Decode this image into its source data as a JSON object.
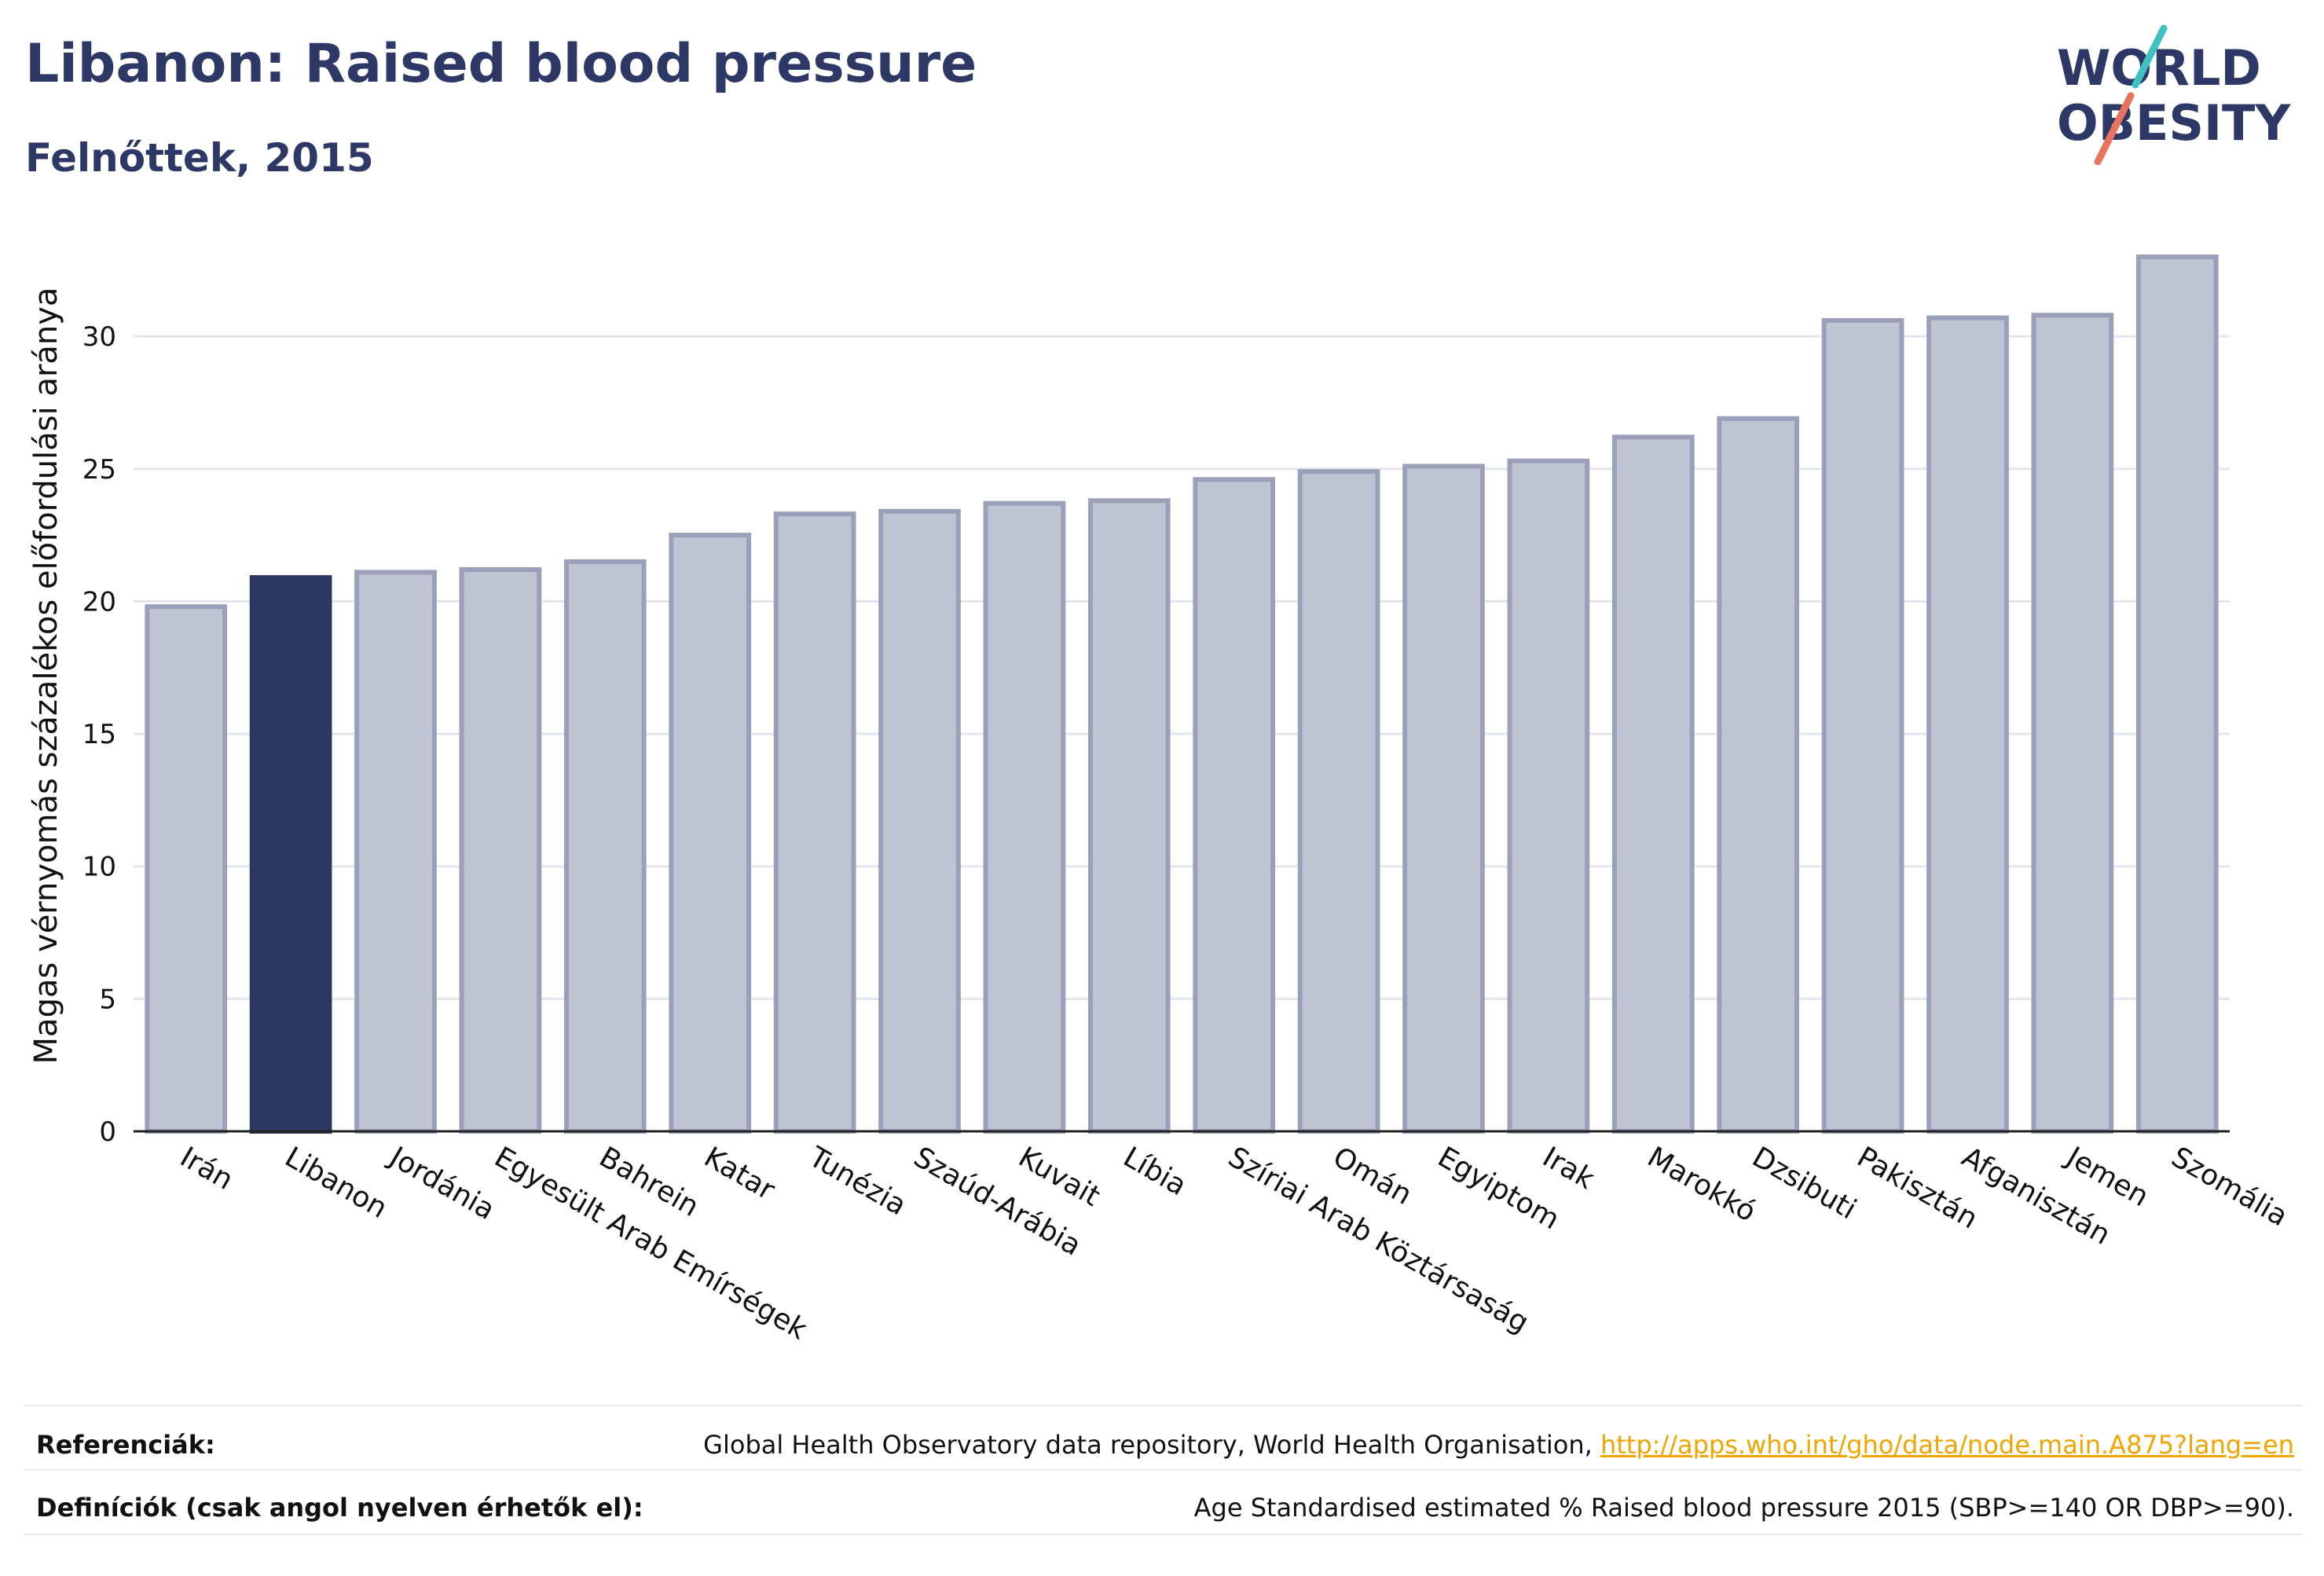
{
  "header": {
    "title": "Libanon: Raised blood pressure",
    "subtitle": "Felnőttek, 2015"
  },
  "logo": {
    "line1": "WORLD",
    "line2": "OBESITY",
    "colors": {
      "text": "#2d3866",
      "slash_teal": "#3ec1c1",
      "slash_coral": "#e8735f"
    }
  },
  "colors": {
    "highlight_bar": "#2d3862",
    "other_bar_fill": "#bfc3d2",
    "other_bar_stroke": "#9aa0ba",
    "grid": "#e4e6ee",
    "axis": "#222222"
  },
  "chart_data": {
    "type": "bar",
    "ylabel": "Magas vérnyomás százalékos előfordulási aránya",
    "xlabel": "",
    "ylim": [
      0,
      33.8
    ],
    "yticks": [
      0,
      5,
      10,
      15,
      20,
      25,
      30
    ],
    "grid": true,
    "highlight": "Libanon",
    "categories": [
      "Irán",
      "Libanon",
      "Jordánia",
      "Egyesült Arab Emírségek",
      "Bahrein",
      "Katar",
      "Tunézia",
      "Szaúd-Arábia",
      "Kuvait",
      "Líbia",
      "Szíriai Arab Köztársaság",
      "Omán",
      "Egyiptom",
      "Irak",
      "Marokkó",
      "Dzsibuti",
      "Pakisztán",
      "Afganisztán",
      "Jemen",
      "Szomália"
    ],
    "values": [
      19.8,
      20.9,
      21.1,
      21.2,
      21.5,
      22.5,
      23.3,
      23.4,
      23.7,
      23.8,
      24.6,
      24.9,
      25.1,
      25.3,
      26.2,
      26.9,
      30.6,
      30.7,
      30.8,
      33.0
    ]
  },
  "footer": {
    "references_label": "Referenciák:",
    "references_text": "Global Health Observatory data repository, World Health Organisation, ",
    "references_link": "http://apps.who.int/gho/data/node.main.A875?lang=en",
    "definitions_label": "Definíciók (csak angol nyelven érhetők el):",
    "definitions_text": "Age Standardised estimated % Raised blood pressure 2015 (SBP>=140 OR DBP>=90)."
  }
}
